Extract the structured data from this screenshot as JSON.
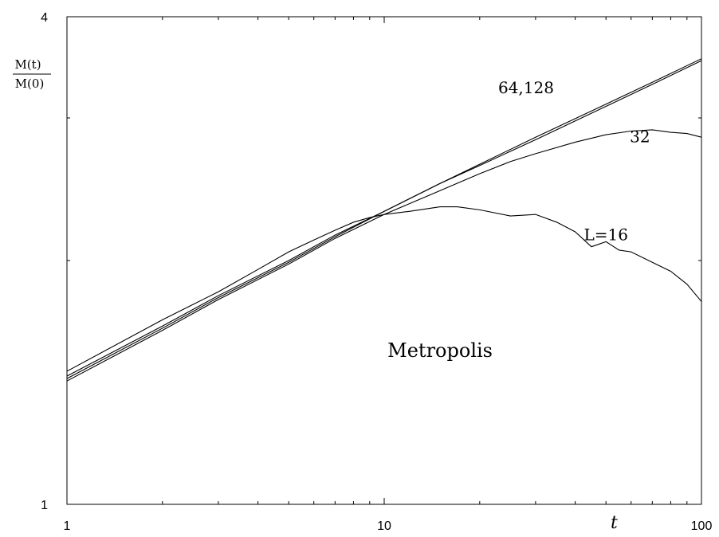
{
  "chart_data": {
    "type": "line",
    "title": "",
    "xlabel": "t",
    "ylabel": {
      "numerator": "M(t)",
      "denominator": "M(0)"
    },
    "x_scale": "log",
    "y_scale": "log",
    "xlim": [
      1,
      100
    ],
    "ylim": [
      1,
      4
    ],
    "x_ticks": [
      "1",
      "10",
      "100"
    ],
    "y_ticks": [
      "1",
      "4"
    ],
    "grid": false,
    "annotations": [
      {
        "text": "64,128",
        "x": 28,
        "y": 3.22
      },
      {
        "text": "32",
        "x": 64,
        "y": 2.8
      },
      {
        "text": "L=16",
        "x": 50,
        "y": 2.12
      },
      {
        "text": "Metropolis",
        "x": 15,
        "y": 1.52
      }
    ],
    "series": [
      {
        "label": "128",
        "x": [
          1,
          2,
          3,
          5,
          7,
          10,
          15,
          20,
          30,
          50,
          70,
          100
        ],
        "y": [
          1.44,
          1.66,
          1.81,
          2.0,
          2.15,
          2.3,
          2.49,
          2.62,
          2.82,
          3.1,
          3.3,
          3.53
        ]
      },
      {
        "label": "64",
        "x": [
          1,
          2,
          3,
          5,
          7,
          10,
          15,
          20,
          30,
          50,
          70,
          100
        ],
        "y": [
          1.43,
          1.65,
          1.8,
          1.99,
          2.14,
          2.3,
          2.49,
          2.63,
          2.84,
          3.12,
          3.32,
          3.55
        ]
      },
      {
        "label": "32",
        "x": [
          1,
          2,
          3,
          5,
          7,
          10,
          15,
          20,
          25,
          30,
          40,
          50,
          60,
          70,
          80,
          90,
          100
        ],
        "y": [
          1.42,
          1.64,
          1.79,
          1.98,
          2.13,
          2.28,
          2.44,
          2.56,
          2.65,
          2.71,
          2.8,
          2.86,
          2.89,
          2.9,
          2.88,
          2.87,
          2.84
        ]
      },
      {
        "label": "L=16",
        "x": [
          1,
          2,
          3,
          4,
          5,
          6,
          7,
          8,
          9,
          10,
          12,
          15,
          17,
          20,
          25,
          30,
          35,
          40,
          45,
          50,
          55,
          60,
          70,
          80,
          90,
          100
        ],
        "y": [
          1.46,
          1.69,
          1.83,
          1.95,
          2.05,
          2.12,
          2.18,
          2.23,
          2.26,
          2.28,
          2.3,
          2.33,
          2.33,
          2.31,
          2.27,
          2.28,
          2.23,
          2.17,
          2.08,
          2.11,
          2.06,
          2.05,
          1.99,
          1.94,
          1.87,
          1.78
        ]
      }
    ]
  }
}
